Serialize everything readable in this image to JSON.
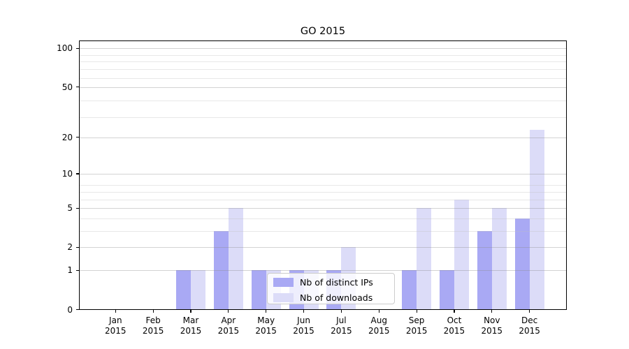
{
  "figure": {
    "title": "GO 2015"
  },
  "chart_data": {
    "type": "bar",
    "title": "GO 2015",
    "xlabel": "",
    "ylabel": "",
    "yscale": "log(1+x)",
    "ylim": [
      0,
      115
    ],
    "grid": true,
    "legend_position": "inside lower-center",
    "categories": [
      "Jan 2015",
      "Feb 2015",
      "Mar 2015",
      "Apr 2015",
      "May 2015",
      "Jun 2015",
      "Jul 2015",
      "Aug 2015",
      "Sep 2015",
      "Oct 2015",
      "Nov 2015",
      "Dec 2015"
    ],
    "x_tick_labels": [
      [
        "Jan",
        "2015"
      ],
      [
        "Feb",
        "2015"
      ],
      [
        "Mar",
        "2015"
      ],
      [
        "Apr",
        "2015"
      ],
      [
        "May",
        "2015"
      ],
      [
        "Jun",
        "2015"
      ],
      [
        "Jul",
        "2015"
      ],
      [
        "Aug",
        "2015"
      ],
      [
        "Sep",
        "2015"
      ],
      [
        "Oct",
        "2015"
      ],
      [
        "Nov",
        "2015"
      ],
      [
        "Dec",
        "2015"
      ]
    ],
    "y_ticks": [
      100,
      50,
      20,
      10,
      5,
      2,
      1,
      0
    ],
    "y_minor_gridlines": [
      3,
      4,
      6,
      7,
      8,
      29,
      39,
      59,
      69,
      79,
      89
    ],
    "series": [
      {
        "name": "Nb of distinct IPs",
        "color": "#a9a9f4",
        "values": [
          0,
          0,
          1,
          3,
          1,
          1,
          1,
          0,
          1,
          1,
          3,
          4
        ]
      },
      {
        "name": "Nb of downloads",
        "color": "#dcdcf8",
        "values": [
          0,
          0,
          1,
          5,
          1,
          1,
          2,
          0,
          5,
          6,
          5,
          23
        ]
      }
    ]
  },
  "colors": {
    "background": "#ffffff",
    "spine": "#000000",
    "major_grid": "#cccccc",
    "minor_grid": "#e9e9e9",
    "legend_border": "#cccccc"
  }
}
